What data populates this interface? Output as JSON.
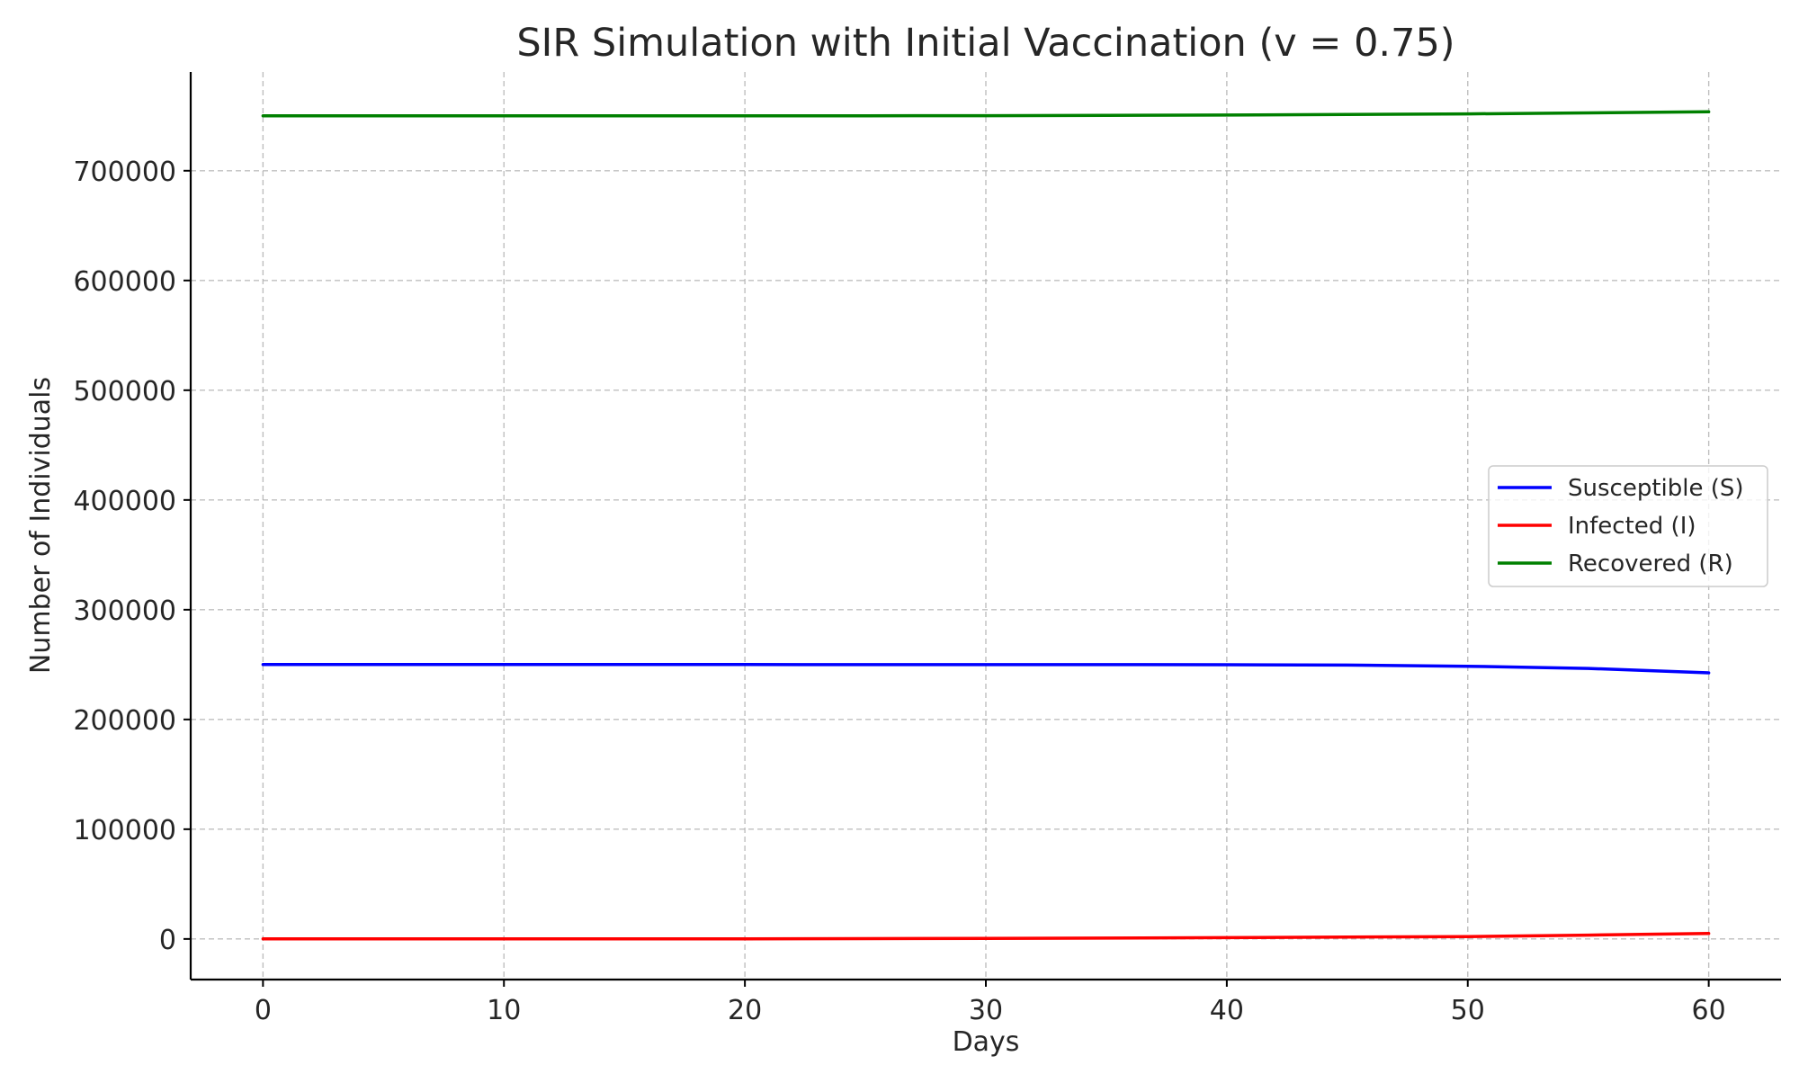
{
  "chart_data": {
    "type": "line",
    "title": "SIR Simulation with Initial Vaccination (v = 0.75)",
    "xlabel": "Days",
    "ylabel": "Number of Individuals",
    "xlim": [
      -3,
      63
    ],
    "ylim": [
      -37000,
      790000
    ],
    "xticks": [
      0,
      10,
      20,
      30,
      40,
      50,
      60
    ],
    "yticks": [
      0,
      100000,
      200000,
      300000,
      400000,
      500000,
      600000,
      700000
    ],
    "grid": true,
    "legend_position": "center-right",
    "x": [
      0,
      5,
      10,
      15,
      20,
      25,
      30,
      35,
      40,
      45,
      50,
      55,
      60
    ],
    "series": [
      {
        "name": "Susceptible (S)",
        "color": "#0000ff",
        "values": [
          250000,
          250000,
          249999,
          249998,
          249995,
          249990,
          249980,
          249950,
          249850,
          249500,
          248500,
          246500,
          242500
        ]
      },
      {
        "name": "Infected (I)",
        "color": "#ff0000",
        "values": [
          10,
          20,
          40,
          80,
          150,
          280,
          500,
          800,
          1200,
          1700,
          2200,
          3500,
          5000
        ]
      },
      {
        "name": "Recovered (R)",
        "color": "#008000",
        "values": [
          750000,
          750000,
          750000,
          750000,
          750000,
          750100,
          750200,
          750400,
          750700,
          751200,
          751800,
          752700,
          753700
        ]
      }
    ]
  }
}
